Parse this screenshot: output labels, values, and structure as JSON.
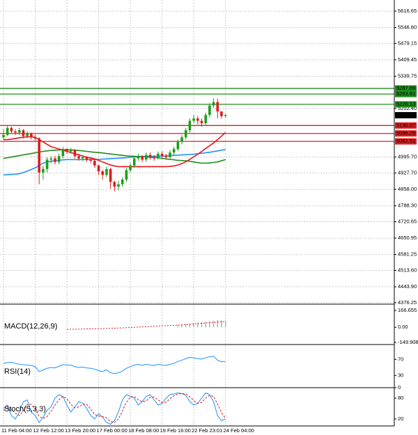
{
  "chart_data": [
    {
      "type": "candlestick",
      "categories": [
        "11 Feb 04:00",
        null,
        null,
        null,
        null,
        null,
        null,
        null,
        "12 Feb 12:00",
        null,
        null,
        null,
        null,
        null,
        null,
        null,
        "13 Feb 20:00",
        null,
        null,
        null,
        null,
        null,
        null,
        null,
        "17 Feb 00:00",
        null,
        null,
        null,
        null,
        null,
        null,
        null,
        "18 Feb 08:00",
        null,
        null,
        null,
        null,
        null,
        null,
        null,
        "19 Feb 16:00",
        null,
        null,
        null,
        null,
        null,
        null,
        null,
        "22 Feb 23:01",
        null,
        null,
        null,
        null,
        null,
        null,
        null,
        "24 Feb 04:00"
      ],
      "open": [
        5080,
        5090,
        5120,
        5105,
        5100,
        5110,
        5085,
        5095,
        5080,
        5075,
        4930,
        4945,
        4985,
        4990,
        4975,
        5000,
        5030,
        5020,
        5025,
        5000,
        4990,
        4995,
        4985,
        4980,
        4960,
        4935,
        4920,
        4945,
        4890,
        4870,
        4880,
        4900,
        4940,
        4960,
        4990,
        5000,
        4985,
        5005,
        4995,
        4990,
        5010,
        5000,
        4995,
        5015,
        5030,
        5060,
        5080,
        5110,
        5150,
        5160,
        5150,
        5140,
        5175,
        5215,
        5230,
        5190,
        5170
      ],
      "high": [
        5115,
        5130,
        5125,
        5115,
        5120,
        5115,
        5105,
        5100,
        5090,
        5080,
        4960,
        4995,
        5000,
        5000,
        5010,
        5040,
        5035,
        5035,
        5030,
        5010,
        5005,
        5000,
        4995,
        4985,
        4965,
        4940,
        4955,
        4950,
        4895,
        4895,
        4910,
        4950,
        4970,
        5000,
        5010,
        5005,
        5015,
        5015,
        5005,
        5020,
        5020,
        5010,
        5025,
        5040,
        5070,
        5090,
        5120,
        5160,
        5175,
        5170,
        5160,
        5185,
        5225,
        5245,
        5245,
        5185,
        5180
      ],
      "low": [
        5070,
        5085,
        5095,
        5090,
        5090,
        5075,
        5075,
        5070,
        5065,
        4880,
        4900,
        4930,
        4970,
        4965,
        4965,
        4990,
        5010,
        5010,
        4990,
        4980,
        4980,
        4975,
        4970,
        4950,
        4920,
        4900,
        4910,
        4860,
        4850,
        4855,
        4870,
        4890,
        4930,
        4950,
        4980,
        4975,
        4975,
        4985,
        4980,
        4985,
        4990,
        4985,
        4990,
        5005,
        5020,
        5050,
        5070,
        5100,
        5140,
        5135,
        5125,
        5130,
        5165,
        5205,
        5160,
        5160,
        5165
      ],
      "close": [
        5090,
        5120,
        5105,
        5100,
        5110,
        5085,
        5095,
        5080,
        5075,
        4930,
        4945,
        4985,
        4990,
        4975,
        5000,
        5030,
        5020,
        5025,
        5000,
        4990,
        4995,
        4985,
        4980,
        4960,
        4935,
        4920,
        4945,
        4890,
        4870,
        4880,
        4900,
        4940,
        4960,
        4990,
        5000,
        4985,
        5005,
        4995,
        4990,
        5010,
        5000,
        4995,
        5015,
        5030,
        5060,
        5080,
        5110,
        5150,
        5160,
        5150,
        5140,
        5175,
        5215,
        5230,
        5190,
        5170,
        5174
      ],
      "up_color": "#1a9e1a",
      "down_color": "#e01b1b",
      "moving_averages": [
        {
          "color": "#1e90ff",
          "values": [
            4920,
            4921,
            4922,
            4923,
            4925,
            4930,
            4936,
            4943,
            4950,
            4960,
            4970,
            4975,
            4978,
            4980,
            4982,
            4984,
            4985,
            4985,
            4985,
            4985,
            4985,
            4985,
            4985,
            4985,
            4986,
            4987,
            4988,
            4989,
            4990,
            4991,
            4992,
            4993,
            4995,
            4996,
            4997,
            4998,
            4998,
            4999,
            4999,
            5000,
            5000,
            5001,
            5002,
            5003,
            5004,
            5005,
            5006,
            5007,
            5008,
            5010,
            5012,
            5014,
            5016,
            5019,
            5022,
            5025,
            5028
          ]
        },
        {
          "color": "#1e8c1e",
          "values": [
            4990,
            4993,
            4996,
            4999,
            5002,
            5005,
            5008,
            5011,
            5014,
            5017,
            5020,
            5022,
            5024,
            5025,
            5026,
            5027,
            5027,
            5026,
            5025,
            5024,
            5022,
            5020,
            5018,
            5016,
            5015,
            5013,
            5011,
            5009,
            5007,
            5005,
            5003,
            5001,
            5000,
            4999,
            4998,
            4997,
            4996,
            4995,
            4994,
            4993,
            4990,
            4988,
            4986,
            4984,
            4982,
            4981,
            4980,
            4978,
            4975,
            4972,
            4970,
            4970,
            4971,
            4973,
            4975,
            4980,
            4985
          ]
        },
        {
          "color": "#e8141c",
          "values": [
            5070,
            5070,
            5072,
            5075,
            5078,
            5080,
            5082,
            5082,
            5080,
            5070,
            5060,
            5050,
            5040,
            5035,
            5030,
            5025,
            5020,
            5015,
            5010,
            5005,
            5000,
            4995,
            4992,
            4988,
            4982,
            4975,
            4968,
            4962,
            4958,
            4955,
            4955,
            4955,
            4955,
            4955,
            4955,
            4955,
            4955,
            4955,
            4955,
            4955,
            4955,
            4955,
            4956,
            4958,
            4962,
            4968,
            4976,
            4986,
            4997,
            5008,
            5020,
            5032,
            5044,
            5056,
            5070,
            5085,
            5100
          ]
        }
      ],
      "levels": [
        {
          "value": 5287.69,
          "color": "#1e8c1e"
        },
        {
          "value": 5263.91,
          "color": "#1e8c1e"
        },
        {
          "value": 5220.13,
          "color": "#1e8c1e"
        },
        {
          "value": 5130.07,
          "color": "#e01b1b"
        },
        {
          "value": 5096.29,
          "color": "#e01b1b"
        },
        {
          "value": 5062.51,
          "color": "#e01b1b"
        }
      ],
      "last_price": 5173.85,
      "last_color": "#000000",
      "ylim": [
        4370,
        5664
      ],
      "yticks": [
        5616.65,
        {
          "value": 5546.8,
          "label": "5546.80"
        },
        5479.15,
        5409.45,
        5339.75,
        {
          "value": 5202.4,
          "label": "5202.40"
        },
        {
          "value": 4995.7,
          "label": "4995.70"
        },
        {
          "value": 4927.7,
          "label": "4927.70"
        },
        {
          "value": 4858,
          "label": "4858.00"
        },
        {
          "value": 4788.3,
          "label": "4788.30"
        },
        4720.65,
        4650.95,
        4581.25,
        {
          "value": 4513.6,
          "label": "4513.60"
        },
        {
          "value": 4443.9,
          "label": "4443.90"
        },
        4376.25
      ],
      "grid": true
    },
    {
      "type": "macd",
      "title": "MACD(12,26,9)",
      "values": [
        null,
        null,
        null,
        null,
        null,
        null,
        null,
        null,
        null,
        null,
        null,
        null,
        null,
        null,
        null,
        null,
        null,
        null,
        null,
        null,
        null,
        null,
        null,
        null,
        null,
        null,
        null,
        null,
        null,
        null,
        null,
        null,
        null,
        null,
        null,
        null,
        null,
        null,
        null,
        null,
        null,
        null,
        null,
        null,
        20,
        25,
        30,
        35,
        40,
        45,
        50,
        55,
        60,
        65,
        70,
        68,
        66
      ],
      "signal": [
        null,
        null,
        null,
        null,
        null,
        null,
        null,
        null,
        null,
        null,
        null,
        null,
        null,
        null,
        null,
        null,
        -20,
        -20,
        -19,
        -18,
        -17,
        -16,
        -15,
        -14,
        -13,
        -12,
        -11,
        -10,
        -9,
        -8,
        -6,
        -4,
        -2,
        0,
        2,
        4,
        6,
        8,
        10,
        12,
        14,
        16,
        18,
        20,
        22,
        24,
        27,
        30,
        33,
        36,
        39,
        42,
        45,
        48,
        51,
        54,
        56
      ],
      "color": "#b0b0b0",
      "signal_color": "#e01b1b",
      "ylim": [
        -149.908,
        166.655
      ],
      "yticks": [
        166.655,
        {
          "value": 0,
          "label": "0.00"
        },
        -149.908
      ]
    },
    {
      "type": "line",
      "title": "RSI(14)",
      "values": [
        60,
        62,
        63,
        60,
        58,
        57,
        56,
        55,
        52,
        40,
        44,
        48,
        50,
        49,
        53,
        57,
        56,
        56,
        52,
        50,
        51,
        49,
        48,
        46,
        42,
        40,
        44,
        37,
        35,
        37,
        41,
        48,
        52,
        56,
        58,
        55,
        58,
        56,
        55,
        58,
        56,
        55,
        58,
        60,
        65,
        68,
        72,
        75,
        74,
        72,
        71,
        74,
        77,
        78,
        68,
        64,
        65
      ],
      "color": "#1e90ff",
      "ylim": [
        0,
        100
      ],
      "yticks": [
        70,
        30,
        0
      ]
    },
    {
      "type": "line",
      "title": "Stoch(5,3,3)",
      "values": [
        50,
        60,
        30,
        20,
        40,
        70,
        75,
        40,
        30,
        10,
        25,
        45,
        55,
        80,
        90,
        85,
        60,
        40,
        55,
        70,
        65,
        50,
        30,
        20,
        35,
        25,
        10,
        5,
        15,
        40,
        75,
        90,
        85,
        80,
        60,
        70,
        85,
        90,
        75,
        60,
        65,
        80,
        90,
        92,
        95,
        93,
        88,
        70,
        60,
        65,
        80,
        95,
        90,
        70,
        30,
        15,
        20
      ],
      "signal": [
        45,
        52,
        47,
        37,
        30,
        43,
        62,
        62,
        48,
        27,
        22,
        27,
        42,
        60,
        75,
        85,
        78,
        62,
        52,
        55,
        63,
        62,
        48,
        33,
        28,
        27,
        23,
        13,
        10,
        20,
        43,
        68,
        83,
        85,
        75,
        70,
        72,
        82,
        83,
        75,
        67,
        68,
        78,
        87,
        92,
        93,
        92,
        84,
        73,
        65,
        68,
        80,
        88,
        85,
        63,
        38,
        22
      ],
      "color": "#1e90ff",
      "signal_color": "#e01b1b",
      "ylim": [
        0,
        100
      ],
      "yticks": [
        80,
        20
      ]
    }
  ]
}
